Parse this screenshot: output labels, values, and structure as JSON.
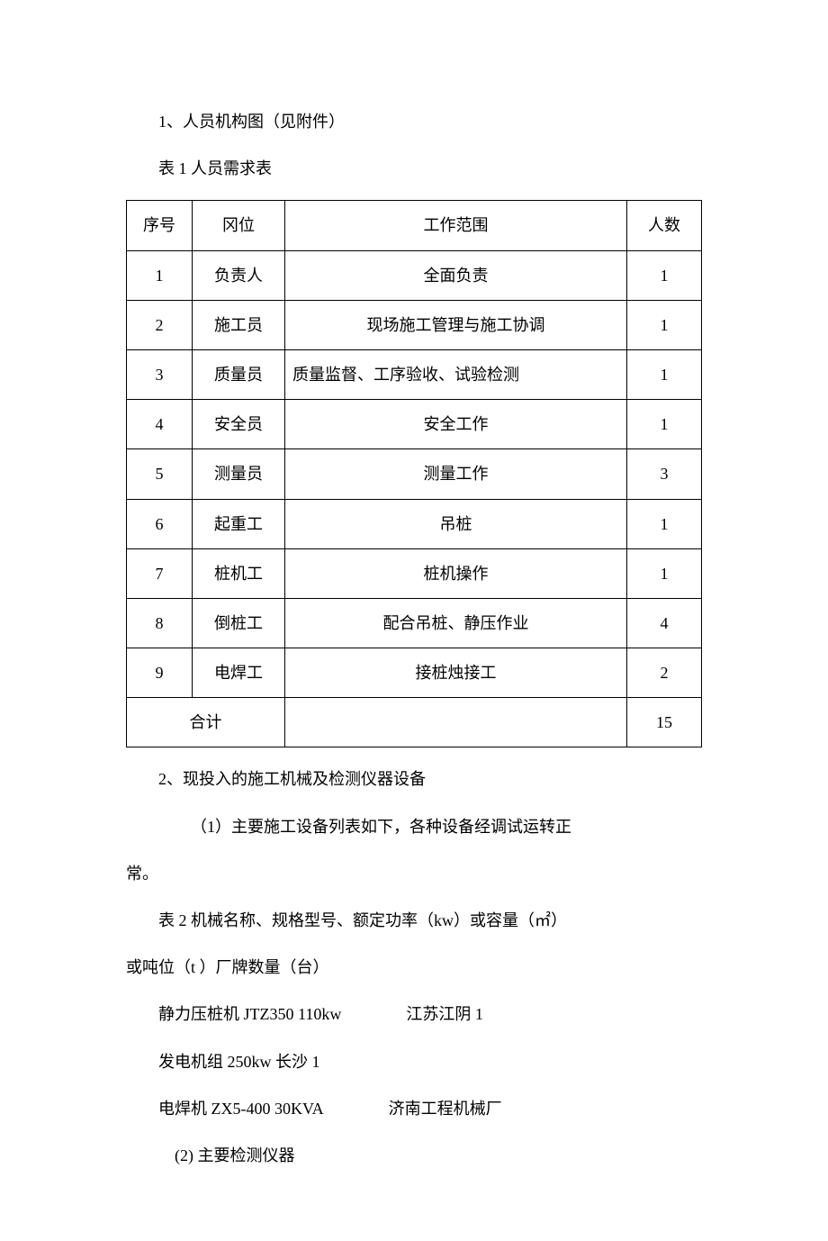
{
  "section1": {
    "heading": "1、人员机构图（见附件）",
    "table_caption": "表 1  人员需求表",
    "table": {
      "columns": [
        "序号",
        "冈位",
        "工作范围",
        "人数"
      ],
      "rows": [
        {
          "seq": "1",
          "pos": "负责人",
          "scope": "全面负责",
          "count": "1"
        },
        {
          "seq": "2",
          "pos": "施工员",
          "scope": "现场施工管理与施工协调",
          "count": "1"
        },
        {
          "seq": "3",
          "pos": "质量员",
          "scope": "质量监督、工序验收、试验检测",
          "count": "1",
          "align": "left"
        },
        {
          "seq": "4",
          "pos": "安全员",
          "scope": "安全工作",
          "count": "1"
        },
        {
          "seq": "5",
          "pos": "测量员",
          "scope": "测量工作",
          "count": "3"
        },
        {
          "seq": "6",
          "pos": "起重工",
          "scope": "吊桩",
          "count": "1"
        },
        {
          "seq": "7",
          "pos": "桩机工",
          "scope": "桩机操作",
          "count": "1"
        },
        {
          "seq": "8",
          "pos": "倒桩工",
          "scope": "配合吊桩、静压作业",
          "count": "4"
        },
        {
          "seq": "9",
          "pos": "电焊工",
          "scope": "接桩烛接工",
          "count": "2"
        }
      ],
      "total_label": "合计",
      "total_value": "15"
    }
  },
  "section2": {
    "heading": "2、现投入的施工机械及检测仪器设备",
    "sub1": "（1）主要施工设备列表如下，各种设备经调试运转正",
    "sub1_cont": "常。",
    "table2_caption_a": "表 2 机械名称、规格型号、额定功率（kw）或容量（㎡）",
    "table2_caption_b": "或吨位（t ）厂牌数量（台）",
    "equipment": [
      "静力压桩机 JTZ350  110kw    江苏江阴 1",
      "发电机组 250kw  长沙 1",
      "电焊机 ZX5-400  30KVA    济南工程机械厂"
    ],
    "sub2": "(2)  主要检测仪器"
  }
}
